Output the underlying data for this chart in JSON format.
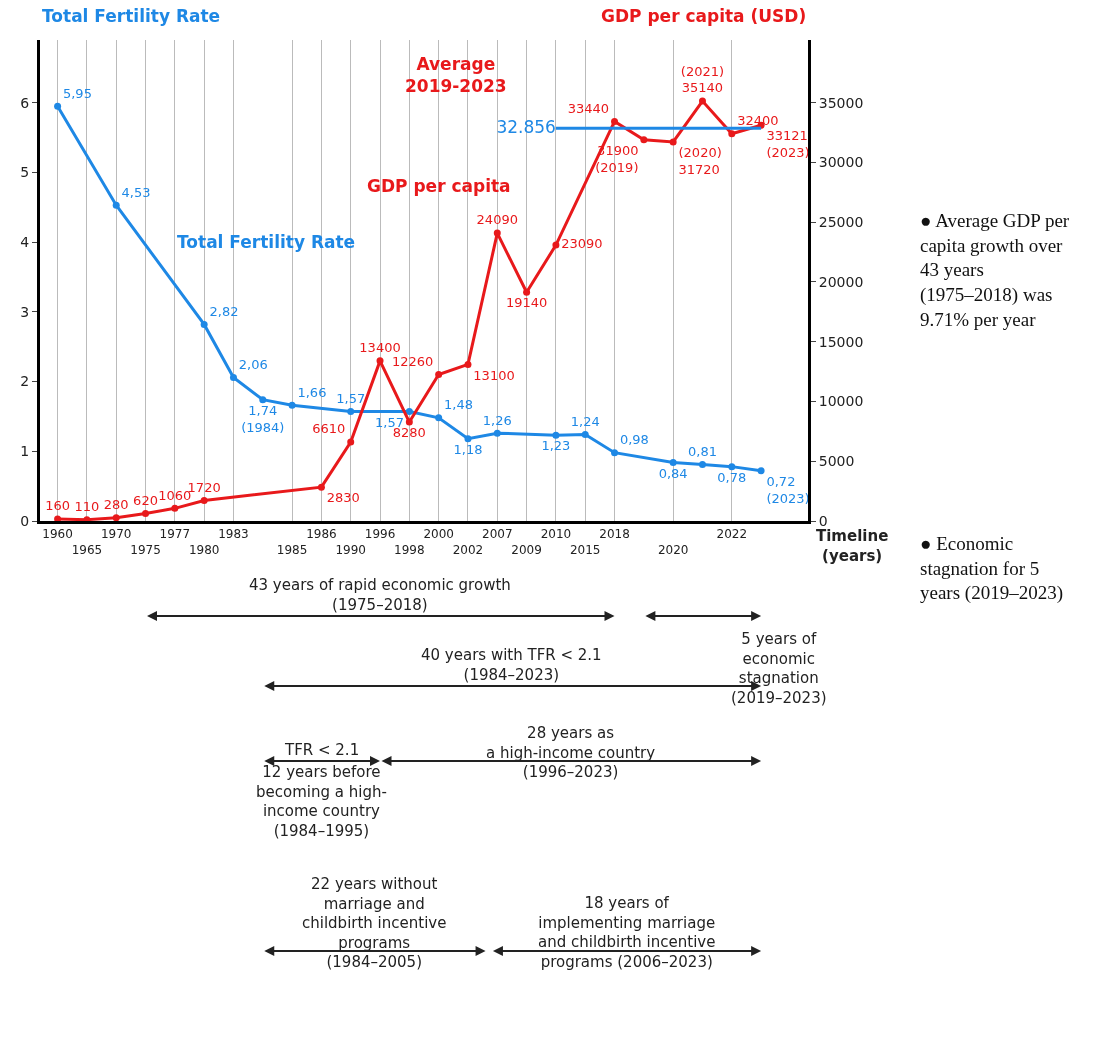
{
  "chart_data": {
    "type": "line",
    "ylabel": "Total Fertility Rate",
    "y2label": "GDP per capita (USD)",
    "xlabel": "Timeline\n(years)",
    "categories": [
      "1960",
      "1965",
      "1970",
      "1975",
      "1977",
      "1980",
      "1983",
      null,
      "1985",
      "1986",
      "1990",
      "1996",
      "1998",
      "2000",
      "2002",
      "2007",
      "2009",
      "2010",
      "2015",
      "2018",
      null,
      "2020",
      null,
      "2022",
      null
    ],
    "series": [
      {
        "name": "Total Fertility Rate",
        "color": "#1e88e5",
        "values": [
          5.95,
          null,
          4.53,
          null,
          null,
          2.82,
          2.06,
          1.74,
          1.66,
          null,
          1.57,
          null,
          1.57,
          1.48,
          1.18,
          1.26,
          null,
          1.23,
          1.24,
          0.98,
          null,
          0.84,
          0.81,
          0.78,
          0.72
        ],
        "value_labels": [
          "5,95",
          null,
          "4,53",
          null,
          null,
          "2,82",
          "2,06",
          "1,74\n(1984)",
          "1,66",
          null,
          "1,57",
          null,
          "1,57",
          "1,48",
          "1,18",
          "1,26",
          null,
          "1,23",
          "1,24",
          "0,98",
          null,
          "0,84",
          "0,81",
          "0,78",
          "0,72\n(2023)"
        ]
      },
      {
        "name": "GDP per capita",
        "color": "#e8191b",
        "axis": "y2",
        "values": [
          160,
          110,
          280,
          620,
          1060,
          1720,
          null,
          null,
          null,
          2830,
          6610,
          13400,
          8280,
          12260,
          13100,
          24090,
          19140,
          23090,
          null,
          33440,
          31900,
          31720,
          35140,
          32400,
          33121
        ],
        "value_labels": [
          "160",
          "110",
          "280",
          "620",
          "1060",
          "1720",
          null,
          null,
          null,
          "2830",
          "6610",
          "13400",
          "8280",
          "12260",
          "13100",
          "24090",
          "19140",
          "23090",
          null,
          "33440",
          "31900\n(2019)",
          "(2020)\n31720",
          "(2021)\n35140",
          "32400",
          "33121\n(2023)"
        ]
      },
      {
        "color": "#1e88e5",
        "axis": "y2",
        "values": [
          null,
          null,
          null,
          null,
          null,
          null,
          null,
          null,
          null,
          null,
          null,
          null,
          null,
          null,
          null,
          null,
          null,
          32856,
          null,
          null,
          null,
          null,
          null,
          null,
          32856
        ],
        "value_labels": [
          null,
          null,
          null,
          null,
          null,
          null,
          null,
          null,
          null,
          null,
          null,
          null,
          null,
          null,
          null,
          null,
          null,
          "32.856",
          null,
          null,
          null,
          null,
          null,
          null,
          null
        ],
        "marker": "none"
      }
    ],
    "ylim": [
      0,
      6.9
    ],
    "yticks": [
      0,
      1,
      2,
      3,
      4,
      5,
      6
    ],
    "y2lim": [
      0,
      40250
    ],
    "y2ticks": [
      0,
      5000,
      10000,
      15000,
      20000,
      25000,
      30000,
      35000
    ],
    "grid": "x",
    "marker": "circle",
    "legend": false,
    "annotations": [
      "Average\n2019-2023",
      "43 years of rapid economic growth\n(1975–2018)",
      "5 years of\neconomic\nstagnation\n(2019–2023)",
      "40 years with TFR < 2.1\n(1984–2023)",
      "TFR < 2.1",
      "12 years before\nbecoming a high-\nincome country\n(1984–1995)",
      "28 years as\na high-income country\n(1996–2023)",
      "22 years without\nmarriage and\nchildbirth incentive\nprograms\n(1984–2005)",
      "18 years of\nimplementing marriage\nand childbirth incentive\nprograms (2006–2023)",
      "● Average GDP per capita growth over 43 years (1975–2018) was 9.71% per year",
      "● Economic stagnation for 5 years (2019–2023)"
    ]
  }
}
